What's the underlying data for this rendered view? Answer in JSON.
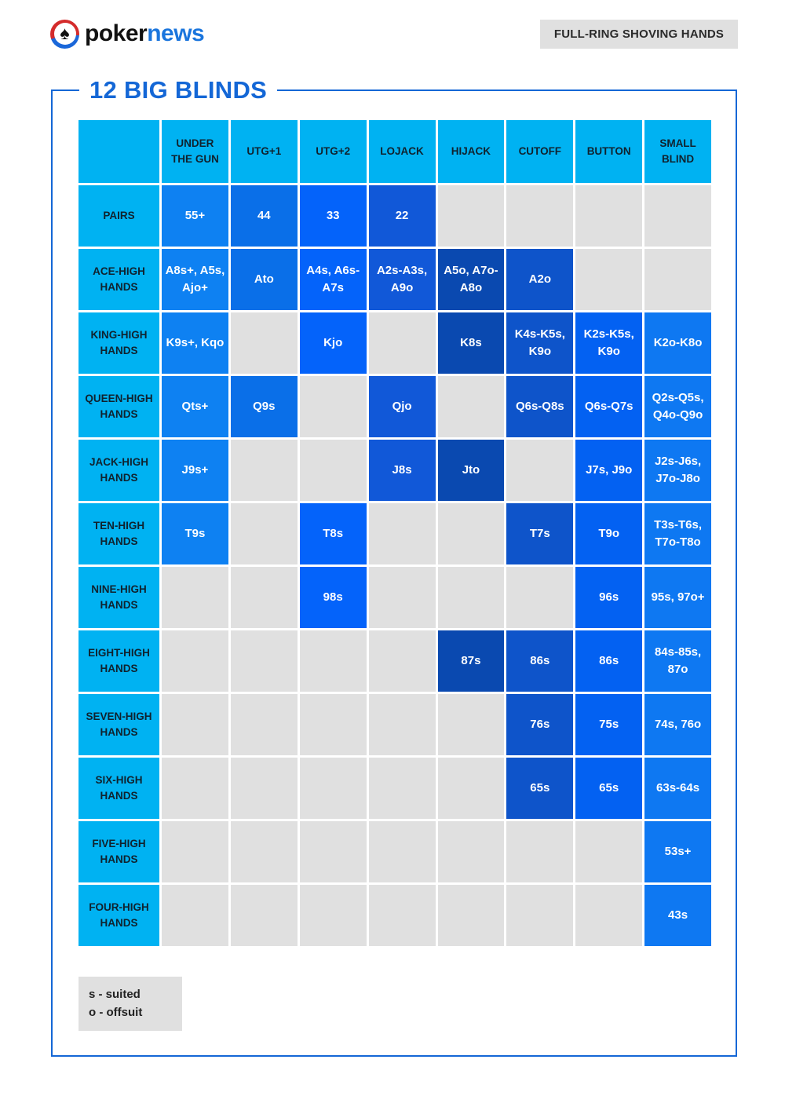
{
  "header": {
    "logo_black": "poker",
    "logo_blue": "news",
    "badge": "FULL-RING SHOVING HANDS"
  },
  "legend": {
    "suited": "s - suited",
    "offsuit": "o - offsuit"
  },
  "colors": {
    "header_cyan": "#00b2f2",
    "empty_gray": "#e0e0e0",
    "frame_blue": "#1467d6",
    "badge_gray": "#e0e0e0",
    "logo_red": "#d42b2b",
    "logo_news_blue": "#1a75dd",
    "cell_text_white": "#ffffff",
    "column_colors": [
      "#0e81f2",
      "#0a6fe8",
      "#0463fa",
      "#1158d8",
      "#0a49b0",
      "#0e54ca",
      "#0361f2",
      "#0e78f2"
    ]
  },
  "chart_data": {
    "type": "table",
    "title": "12 BIG BLINDS",
    "subtitle": "FULL-RING SHOVING HANDS",
    "columns": [
      "UNDER THE GUN",
      "UTG+1",
      "UTG+2",
      "LOJACK",
      "HIJACK",
      "CUTOFF",
      "BUTTON",
      "SMALL BLIND"
    ],
    "rows": [
      {
        "label": "PAIRS",
        "cells": [
          "55+",
          "44",
          "33",
          "22",
          "",
          "",
          "",
          ""
        ]
      },
      {
        "label": "ACE-HIGH HANDS",
        "cells": [
          "A8s+, A5s, Ajo+",
          "Ato",
          "A4s, A6s-A7s",
          "A2s-A3s, A9o",
          "A5o, A7o-A8o",
          "A2o",
          "",
          ""
        ]
      },
      {
        "label": "KING-HIGH HANDS",
        "cells": [
          "K9s+, Kqo",
          "",
          "Kjo",
          "",
          "K8s",
          "K4s-K5s, K9o",
          "K2s-K5s, K9o",
          "K2o-K8o"
        ]
      },
      {
        "label": "QUEEN-HIGH HANDS",
        "cells": [
          "Qts+",
          "Q9s",
          "",
          "Qjo",
          "",
          "Q6s-Q8s",
          "Q6s-Q7s",
          "Q2s-Q5s, Q4o-Q9o"
        ]
      },
      {
        "label": "JACK-HIGH HANDS",
        "cells": [
          "J9s+",
          "",
          "",
          "J8s",
          "Jto",
          "",
          "J7s, J9o",
          "J2s-J6s, J7o-J8o"
        ]
      },
      {
        "label": "TEN-HIGH HANDS",
        "cells": [
          "T9s",
          "",
          "T8s",
          "",
          "",
          "T7s",
          "T9o",
          "T3s-T6s, T7o-T8o"
        ]
      },
      {
        "label": "NINE-HIGH HANDS",
        "cells": [
          "",
          "",
          "98s",
          "",
          "",
          "",
          "96s",
          "95s, 97o+"
        ]
      },
      {
        "label": "EIGHT-HIGH HANDS",
        "cells": [
          "",
          "",
          "",
          "",
          "87s",
          "86s",
          "86s",
          "84s-85s, 87o"
        ]
      },
      {
        "label": "SEVEN-HIGH HANDS",
        "cells": [
          "",
          "",
          "",
          "",
          "",
          "76s",
          "75s",
          "74s, 76o"
        ]
      },
      {
        "label": "SIX-HIGH HANDS",
        "cells": [
          "",
          "",
          "",
          "",
          "",
          "65s",
          "65s",
          "63s-64s"
        ]
      },
      {
        "label": "FIVE-HIGH HANDS",
        "cells": [
          "",
          "",
          "",
          "",
          "",
          "",
          "",
          "53s+"
        ]
      },
      {
        "label": "FOUR-HIGH HANDS",
        "cells": [
          "",
          "",
          "",
          "",
          "",
          "",
          "",
          "43s"
        ]
      }
    ]
  }
}
